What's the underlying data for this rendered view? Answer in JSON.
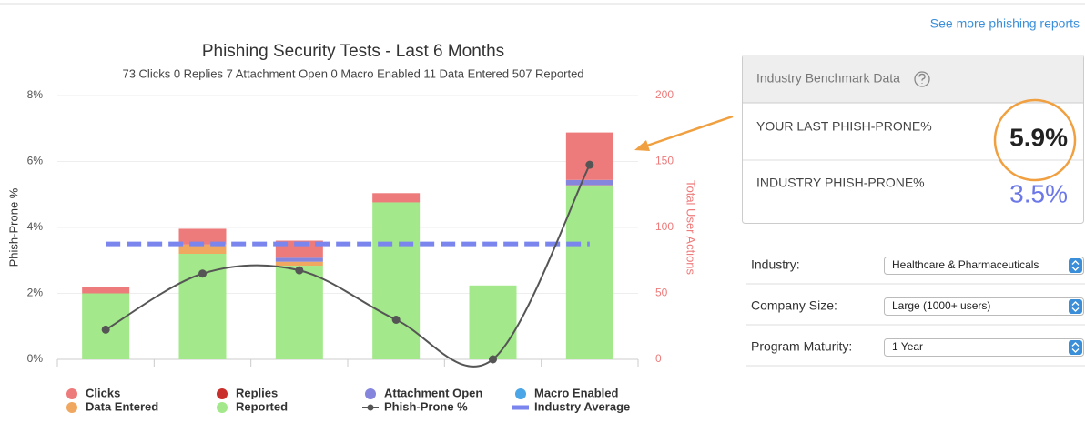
{
  "link": "See more phishing reports",
  "chart_data": {
    "type": "bar",
    "title": "Phishing Security Tests - Last 6 Months",
    "subtitle": "73 Clicks 0 Replies 7 Attachment Open 0 Macro Enabled 11 Data Entered 507 Reported",
    "ylabel": "Phish-Prone %",
    "y2label": "Total User Actions",
    "categories": [
      null,
      null,
      null,
      null,
      null,
      null
    ],
    "ylim": [
      0,
      8
    ],
    "yticks": [
      {
        "value": 0,
        "label": "0%"
      },
      {
        "value": 2,
        "label": "2%"
      },
      {
        "value": 4,
        "label": "4%"
      },
      {
        "value": 6,
        "label": "6%"
      },
      {
        "value": 8,
        "label": "8%"
      }
    ],
    "y2lim": [
      0,
      200
    ],
    "y2ticks": [
      0,
      50,
      100,
      150,
      200
    ],
    "stacked": true,
    "grid": true,
    "legend": "bottom",
    "series": [
      {
        "name": "Clicks",
        "type": "bar",
        "axis": "y2",
        "color": "#ee7b7b",
        "values": [
          5,
          12,
          13,
          7,
          0,
          36
        ]
      },
      {
        "name": "Replies",
        "type": "bar",
        "axis": "y2",
        "color": "#c9302c",
        "values": [
          0,
          0,
          0,
          0,
          0,
          0
        ]
      },
      {
        "name": "Attachment Open",
        "type": "bar",
        "axis": "y2",
        "color": "#8585dd",
        "values": [
          0,
          0,
          3,
          0,
          0,
          4
        ]
      },
      {
        "name": "Macro Enabled",
        "type": "bar",
        "axis": "y2",
        "color": "#4ba6e8",
        "values": [
          0,
          0,
          0,
          0,
          0,
          0
        ]
      },
      {
        "name": "Data Entered",
        "type": "bar",
        "axis": "y2",
        "color": "#f0a860",
        "values": [
          0,
          7,
          3,
          0,
          0,
          1
        ]
      },
      {
        "name": "Reported",
        "type": "bar",
        "axis": "y2",
        "color": "#a3e88a",
        "values": [
          50,
          80,
          71,
          119,
          56,
          131
        ]
      },
      {
        "name": "Phish-Prone %",
        "type": "line",
        "axis": "y",
        "color": "#555555",
        "values": [
          0.9,
          2.6,
          2.7,
          1.2,
          0,
          5.9
        ]
      },
      {
        "name": "Industry Average",
        "type": "dashed",
        "axis": "y",
        "color": "#7a86ee",
        "value": 3.5
      }
    ]
  },
  "benchmark": {
    "title": "Industry Benchmark Data",
    "rows": [
      {
        "label": "YOUR LAST PHISH-PRONE%",
        "value": "5.9%"
      },
      {
        "label": "INDUSTRY PHISH-PRONE%",
        "value": "3.5%"
      }
    ]
  },
  "filters": [
    {
      "label": "Industry:",
      "value": "Healthcare & Pharmaceuticals"
    },
    {
      "label": "Company Size:",
      "value": "Large (1000+ users)"
    },
    {
      "label": "Program Maturity:",
      "value": "1 Year"
    }
  ]
}
